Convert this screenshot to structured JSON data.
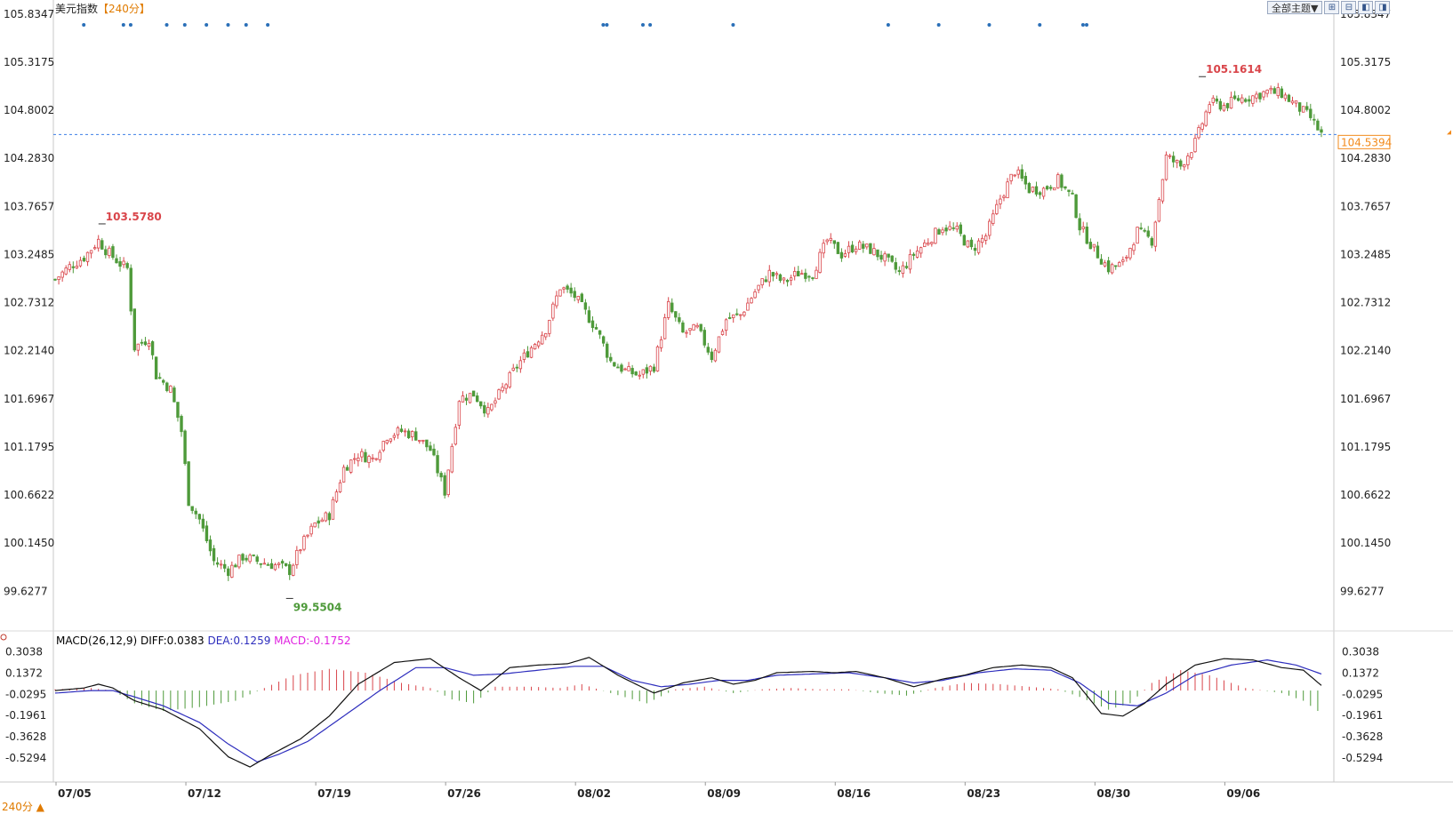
{
  "header": {
    "symbol": "美元指数",
    "period": "【240分】"
  },
  "toolbar": {
    "subject_label": "全部主题▼"
  },
  "colors": {
    "up": "#d9454a",
    "down": "#4e9a3a",
    "diff_line": "#111111",
    "dea_line": "#2d2dbd",
    "macd_label": "#e020e0",
    "price_tag": "#f28a1b",
    "dashed_line": "#3d7fe6",
    "marker": "#2a6fb8"
  },
  "last_price_label": "104.5394",
  "macd": {
    "title": "MACD(26,12,9)",
    "diff_label": "DIFF:0.0383",
    "dea_label": "DEA:0.1259",
    "macd_label": "MACD:-0.1752",
    "y_ticks": [
      "0.3038",
      "0.1372",
      "-0.0295",
      "-0.1961",
      "-0.3628",
      "-0.5294"
    ]
  },
  "bottom_period": "240分 ▲",
  "chart_data": {
    "type": "candlestick",
    "y_ticks": [
      "105.8347",
      "105.3175",
      "104.8002",
      "104.2830",
      "103.7657",
      "103.2485",
      "102.7312",
      "102.2140",
      "101.6967",
      "101.1795",
      "100.6622",
      "100.1450",
      "99.6277"
    ],
    "ylim": [
      99.22,
      105.89
    ],
    "x_tick_labels": [
      "07/05",
      "07/12",
      "07/19",
      "07/26",
      "08/02",
      "08/09",
      "08/16",
      "08/23",
      "08/30",
      "09/06"
    ],
    "annotations": {
      "high": {
        "label": "103.5780",
        "index": 13,
        "value": 103.578
      },
      "low": {
        "label": "99.5504",
        "index": 65,
        "value": 99.5504
      },
      "high2": {
        "label": "105.1614",
        "index": 318,
        "value": 105.1614
      }
    },
    "last_price": 104.5394,
    "close_path": [
      [
        0,
        102.98
      ],
      [
        4,
        103.12
      ],
      [
        8,
        103.22
      ],
      [
        12,
        103.4
      ],
      [
        14,
        103.3
      ],
      [
        18,
        103.15
      ],
      [
        20,
        103.1
      ],
      [
        22,
        102.25
      ],
      [
        26,
        102.35
      ],
      [
        28,
        101.95
      ],
      [
        32,
        101.8
      ],
      [
        35,
        101.35
      ],
      [
        37,
        100.6
      ],
      [
        40,
        100.4
      ],
      [
        44,
        99.95
      ],
      [
        48,
        99.85
      ],
      [
        52,
        100.0
      ],
      [
        56,
        99.95
      ],
      [
        62,
        99.9
      ],
      [
        65,
        99.85
      ],
      [
        68,
        100.1
      ],
      [
        72,
        100.35
      ],
      [
        76,
        100.45
      ],
      [
        80,
        100.95
      ],
      [
        84,
        101.1
      ],
      [
        88,
        101.05
      ],
      [
        92,
        101.3
      ],
      [
        96,
        101.35
      ],
      [
        100,
        101.3
      ],
      [
        104,
        101.15
      ],
      [
        108,
        100.7
      ],
      [
        112,
        101.7
      ],
      [
        116,
        101.75
      ],
      [
        120,
        101.55
      ],
      [
        124,
        101.8
      ],
      [
        128,
        102.05
      ],
      [
        132,
        102.25
      ],
      [
        136,
        102.45
      ],
      [
        140,
        102.9
      ],
      [
        144,
        102.8
      ],
      [
        150,
        102.45
      ],
      [
        154,
        102.1
      ],
      [
        158,
        102.0
      ],
      [
        162,
        101.95
      ],
      [
        166,
        102.05
      ],
      [
        170,
        102.7
      ],
      [
        174,
        102.4
      ],
      [
        178,
        102.45
      ],
      [
        182,
        102.15
      ],
      [
        186,
        102.55
      ],
      [
        190,
        102.6
      ],
      [
        194,
        102.85
      ],
      [
        198,
        103.05
      ],
      [
        202,
        102.95
      ],
      [
        206,
        103.05
      ],
      [
        210,
        103.05
      ],
      [
        214,
        103.4
      ],
      [
        218,
        103.25
      ],
      [
        222,
        103.35
      ],
      [
        226,
        103.3
      ],
      [
        230,
        103.2
      ],
      [
        234,
        103.05
      ],
      [
        238,
        103.25
      ],
      [
        242,
        103.4
      ],
      [
        246,
        103.55
      ],
      [
        250,
        103.5
      ],
      [
        254,
        103.3
      ],
      [
        258,
        103.45
      ],
      [
        262,
        103.85
      ],
      [
        266,
        104.15
      ],
      [
        270,
        103.95
      ],
      [
        274,
        103.95
      ],
      [
        278,
        104.05
      ],
      [
        282,
        103.85
      ],
      [
        284,
        103.55
      ],
      [
        288,
        103.3
      ],
      [
        292,
        103.1
      ],
      [
        296,
        103.15
      ],
      [
        300,
        103.5
      ],
      [
        304,
        103.4
      ],
      [
        308,
        104.3
      ],
      [
        312,
        104.2
      ],
      [
        316,
        104.45
      ],
      [
        320,
        104.88
      ],
      [
        324,
        104.85
      ],
      [
        328,
        104.92
      ],
      [
        332,
        104.95
      ],
      [
        336,
        105.0
      ],
      [
        340,
        104.98
      ],
      [
        344,
        104.85
      ],
      [
        348,
        104.72
      ],
      [
        351,
        104.54
      ]
    ],
    "macd_ylim": [
      -0.62,
      0.37
    ],
    "diff_path": [
      [
        0,
        0.0
      ],
      [
        8,
        0.02
      ],
      [
        12,
        0.05
      ],
      [
        16,
        0.02
      ],
      [
        22,
        -0.08
      ],
      [
        30,
        -0.15
      ],
      [
        40,
        -0.3
      ],
      [
        48,
        -0.52
      ],
      [
        54,
        -0.6
      ],
      [
        60,
        -0.5
      ],
      [
        68,
        -0.38
      ],
      [
        76,
        -0.2
      ],
      [
        84,
        0.05
      ],
      [
        94,
        0.22
      ],
      [
        104,
        0.25
      ],
      [
        112,
        0.1
      ],
      [
        118,
        0.0
      ],
      [
        126,
        0.18
      ],
      [
        134,
        0.2
      ],
      [
        142,
        0.21
      ],
      [
        148,
        0.26
      ],
      [
        156,
        0.12
      ],
      [
        166,
        -0.02
      ],
      [
        174,
        0.06
      ],
      [
        182,
        0.1
      ],
      [
        188,
        0.05
      ],
      [
        194,
        0.08
      ],
      [
        200,
        0.14
      ],
      [
        210,
        0.15
      ],
      [
        216,
        0.14
      ],
      [
        222,
        0.15
      ],
      [
        230,
        0.1
      ],
      [
        238,
        0.03
      ],
      [
        246,
        0.09
      ],
      [
        252,
        0.12
      ],
      [
        260,
        0.18
      ],
      [
        268,
        0.2
      ],
      [
        276,
        0.18
      ],
      [
        282,
        0.1
      ],
      [
        290,
        -0.18
      ],
      [
        296,
        -0.2
      ],
      [
        302,
        -0.1
      ],
      [
        308,
        0.05
      ],
      [
        316,
        0.2
      ],
      [
        324,
        0.25
      ],
      [
        332,
        0.24
      ],
      [
        340,
        0.18
      ],
      [
        346,
        0.16
      ],
      [
        351,
        0.04
      ]
    ],
    "dea_path": [
      [
        0,
        -0.02
      ],
      [
        10,
        0.0
      ],
      [
        16,
        0.0
      ],
      [
        22,
        -0.05
      ],
      [
        30,
        -0.12
      ],
      [
        40,
        -0.25
      ],
      [
        48,
        -0.42
      ],
      [
        56,
        -0.56
      ],
      [
        62,
        -0.5
      ],
      [
        70,
        -0.4
      ],
      [
        80,
        -0.2
      ],
      [
        90,
        0.0
      ],
      [
        100,
        0.18
      ],
      [
        108,
        0.18
      ],
      [
        116,
        0.12
      ],
      [
        124,
        0.13
      ],
      [
        134,
        0.16
      ],
      [
        144,
        0.19
      ],
      [
        152,
        0.19
      ],
      [
        160,
        0.08
      ],
      [
        168,
        0.03
      ],
      [
        176,
        0.05
      ],
      [
        184,
        0.08
      ],
      [
        192,
        0.08
      ],
      [
        200,
        0.12
      ],
      [
        210,
        0.13
      ],
      [
        220,
        0.14
      ],
      [
        230,
        0.1
      ],
      [
        238,
        0.06
      ],
      [
        246,
        0.08
      ],
      [
        256,
        0.14
      ],
      [
        266,
        0.17
      ],
      [
        276,
        0.16
      ],
      [
        284,
        0.06
      ],
      [
        292,
        -0.1
      ],
      [
        300,
        -0.12
      ],
      [
        308,
        -0.02
      ],
      [
        316,
        0.12
      ],
      [
        326,
        0.2
      ],
      [
        336,
        0.24
      ],
      [
        344,
        0.2
      ],
      [
        351,
        0.13
      ]
    ],
    "hist_path": [
      [
        0,
        0.01
      ],
      [
        10,
        0.02
      ],
      [
        16,
        0.0
      ],
      [
        22,
        -0.1
      ],
      [
        30,
        -0.16
      ],
      [
        40,
        -0.13
      ],
      [
        50,
        -0.08
      ],
      [
        58,
        0.02
      ],
      [
        66,
        0.12
      ],
      [
        76,
        0.17
      ],
      [
        86,
        0.14
      ],
      [
        96,
        0.06
      ],
      [
        104,
        0.02
      ],
      [
        110,
        -0.07
      ],
      [
        116,
        -0.1
      ],
      [
        122,
        0.03
      ],
      [
        132,
        0.03
      ],
      [
        140,
        0.02
      ],
      [
        146,
        0.05
      ],
      [
        154,
        -0.02
      ],
      [
        164,
        -0.1
      ],
      [
        172,
        0.01
      ],
      [
        180,
        0.03
      ],
      [
        188,
        -0.02
      ],
      [
        196,
        0.01
      ],
      [
        204,
        0.02
      ],
      [
        212,
        0.01
      ],
      [
        220,
        0.01
      ],
      [
        228,
        -0.02
      ],
      [
        236,
        -0.04
      ],
      [
        244,
        0.02
      ],
      [
        252,
        0.06
      ],
      [
        262,
        0.05
      ],
      [
        270,
        0.03
      ],
      [
        278,
        0.01
      ],
      [
        284,
        -0.05
      ],
      [
        292,
        -0.15
      ],
      [
        298,
        -0.1
      ],
      [
        304,
        0.06
      ],
      [
        312,
        0.16
      ],
      [
        320,
        0.12
      ],
      [
        330,
        0.02
      ],
      [
        340,
        -0.02
      ],
      [
        346,
        -0.08
      ],
      [
        351,
        -0.18
      ]
    ],
    "event_markers": [
      3,
      14,
      16,
      26,
      31,
      37,
      43,
      48,
      54,
      147,
      148,
      158,
      160,
      183,
      226,
      240,
      254,
      268,
      280,
      281
    ],
    "bar_count": 352
  }
}
